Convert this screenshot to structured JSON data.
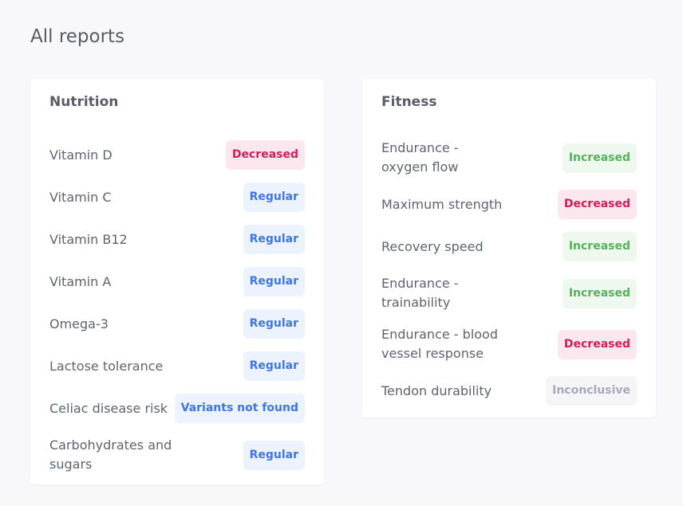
{
  "page": {
    "title": "All reports"
  },
  "nutrition": {
    "title": "Nutrition",
    "items": [
      {
        "label": "Vitamin D",
        "status": "Decreased",
        "kind": "decreased"
      },
      {
        "label": "Vitamin C",
        "status": "Regular",
        "kind": "regular"
      },
      {
        "label": "Vitamin B12",
        "status": "Regular",
        "kind": "regular"
      },
      {
        "label": "Vitamin A",
        "status": "Regular",
        "kind": "regular"
      },
      {
        "label": "Omega-3",
        "status": "Regular",
        "kind": "regular"
      },
      {
        "label": "Lactose tolerance",
        "status": "Regular",
        "kind": "regular"
      },
      {
        "label": "Celiac disease risk",
        "status": "Variants not found",
        "kind": "regular"
      },
      {
        "label": "Carbohydrates and sugars",
        "status": "Regular",
        "kind": "regular"
      }
    ]
  },
  "fitness": {
    "title": "Fitness",
    "items": [
      {
        "label": "Endurance - oxygen flow",
        "status": "Increased",
        "kind": "increased"
      },
      {
        "label": "Maximum strength",
        "status": "Decreased",
        "kind": "decreased"
      },
      {
        "label": "Recovery speed",
        "status": "Increased",
        "kind": "increased"
      },
      {
        "label": "Endurance - trainability",
        "status": "Increased",
        "kind": "increased"
      },
      {
        "label": "Endurance - blood vessel response",
        "status": "Decreased",
        "kind": "decreased"
      },
      {
        "label": "Tendon durability",
        "status": "Inconclusive",
        "kind": "inconclusive"
      }
    ]
  },
  "colors": {
    "page_background": "#f8f8fa",
    "card_background": "#ffffff",
    "decreased_bg": "#fde7ee",
    "decreased_text": "#cc1f5b",
    "regular_bg": "#ecf2fe",
    "regular_text": "#3f76e0",
    "increased_bg": "#eef8ee",
    "increased_text": "#58b15e",
    "inconclusive_bg": "#f5f5f8",
    "inconclusive_text": "#a6aab9"
  }
}
